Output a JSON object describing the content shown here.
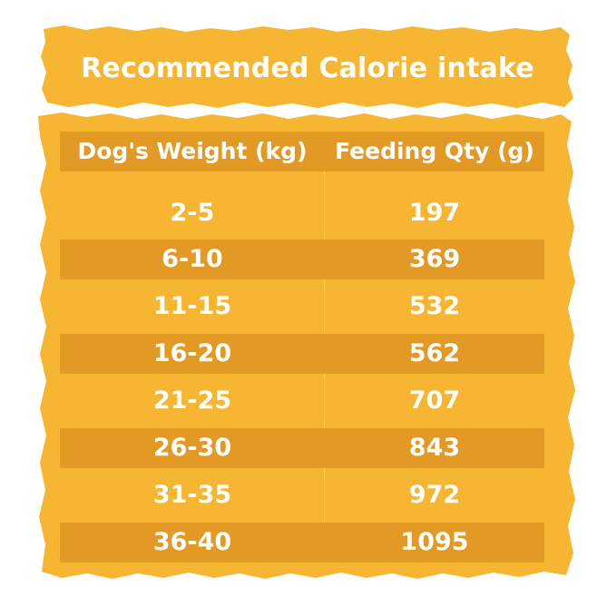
{
  "title": "Recommended Calorie intake",
  "colors": {
    "paper": "#f6b632",
    "stripe": "#e39a24",
    "text": "#ffffff"
  },
  "table": {
    "headers": [
      "Dog's Weight (kg)",
      "Feeding Qty (g)"
    ],
    "rows": [
      [
        "2-5",
        "197"
      ],
      [
        "6-10",
        "369"
      ],
      [
        "11-15",
        "532"
      ],
      [
        "16-20",
        "562"
      ],
      [
        "21-25",
        "707"
      ],
      [
        "26-30",
        "843"
      ],
      [
        "31-35",
        "972"
      ],
      [
        "36-40",
        "1095"
      ]
    ]
  }
}
